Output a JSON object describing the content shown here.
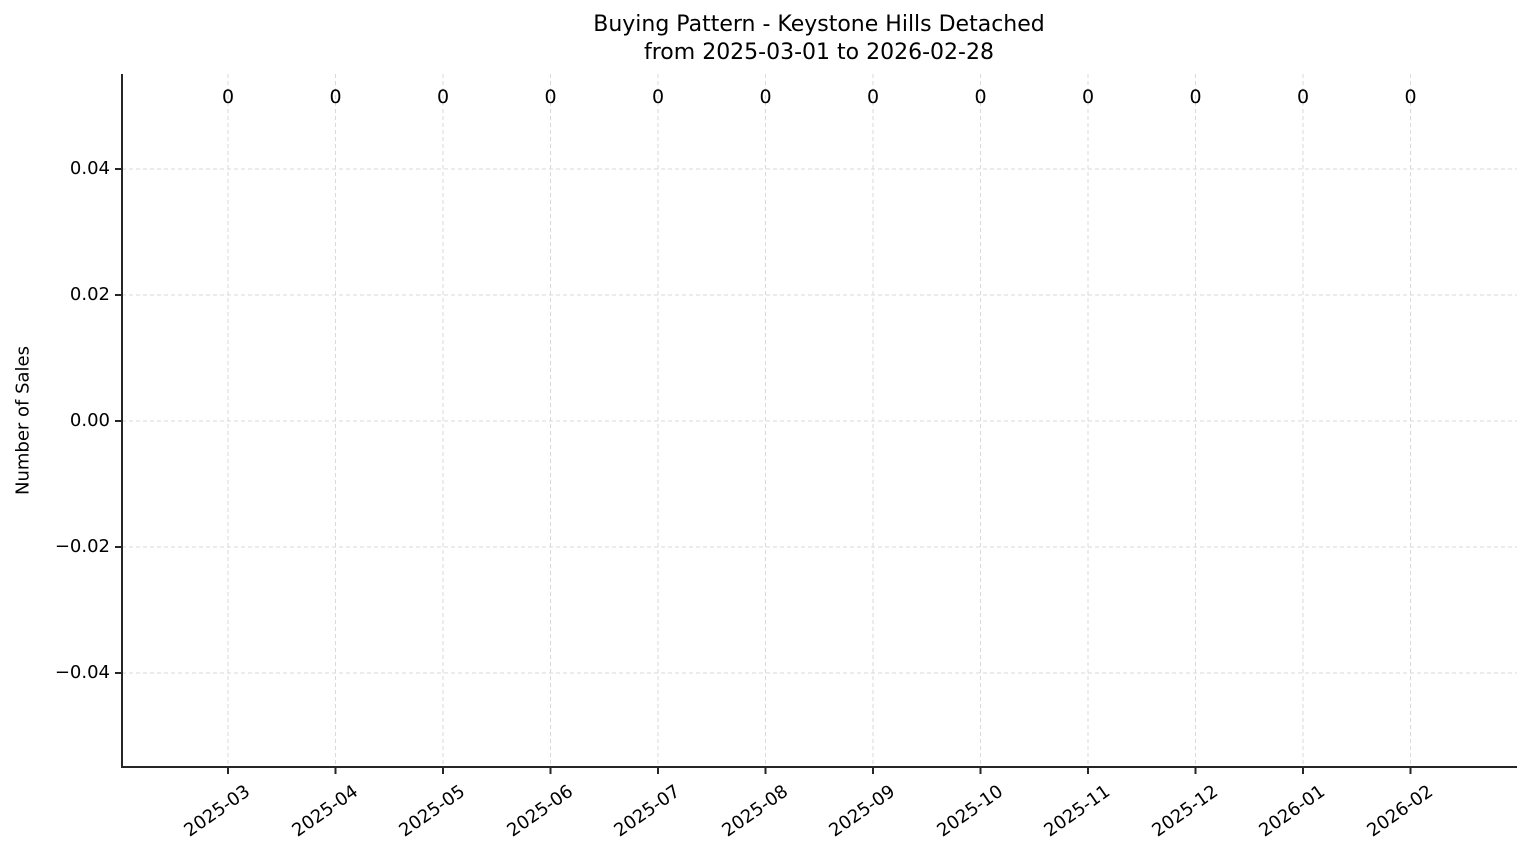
{
  "chart_data": {
    "type": "bar",
    "title": "Buying Pattern - Keystone Hills Detached",
    "subtitle": "from 2025-03-01 to 2026-02-28",
    "xlabel": "",
    "ylabel": "Number of Sales",
    "categories": [
      "2025-03",
      "2025-04",
      "2025-05",
      "2025-06",
      "2025-07",
      "2025-08",
      "2025-09",
      "2025-10",
      "2025-11",
      "2025-12",
      "2026-01",
      "2026-02"
    ],
    "values": [
      0,
      0,
      0,
      0,
      0,
      0,
      0,
      0,
      0,
      0,
      0,
      0
    ],
    "data_labels": [
      "0",
      "0",
      "0",
      "0",
      "0",
      "0",
      "0",
      "0",
      "0",
      "0",
      "0",
      "0"
    ],
    "ylim": [
      -0.055,
      0.055
    ],
    "yticks": [
      -0.04,
      -0.02,
      0.0,
      0.02,
      0.04
    ],
    "ytick_labels": [
      "−0.04",
      "−0.02",
      "0.00",
      "0.02",
      "0.04"
    ],
    "grid": true,
    "grid_style": "dashed",
    "legend": null,
    "colors": {
      "axis": "#262626",
      "grid": "#d9d9d9",
      "text": "#000000"
    }
  }
}
